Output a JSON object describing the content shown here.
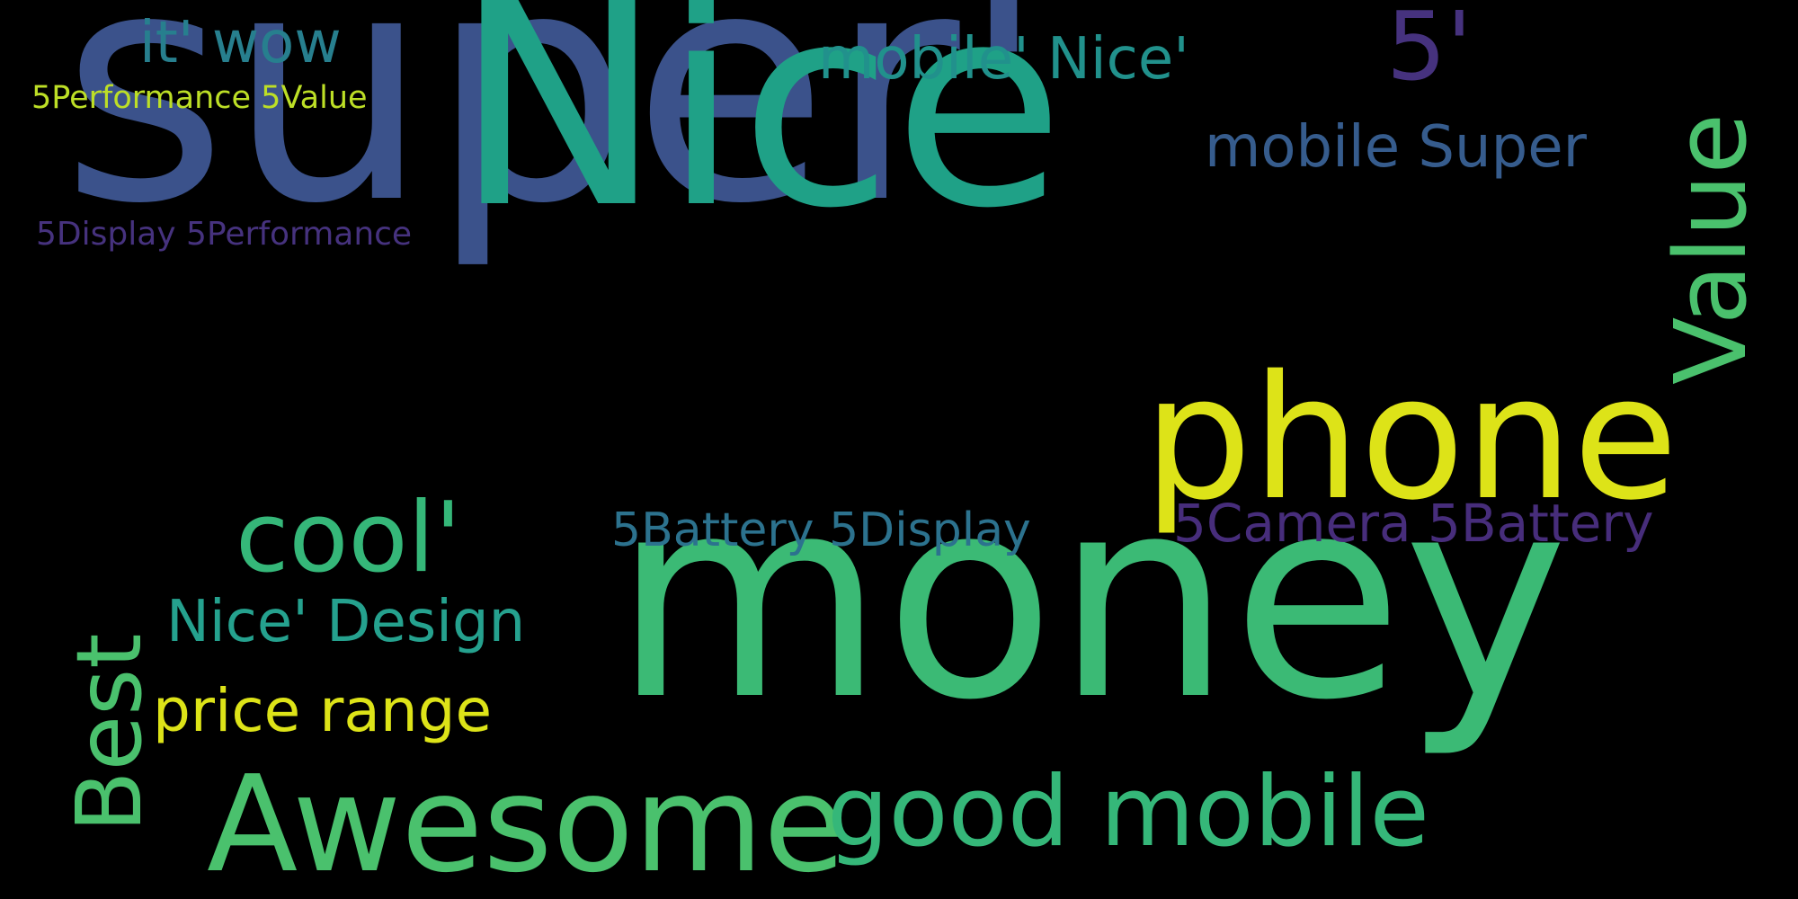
{
  "background": "#000000",
  "palette": {
    "deep_purple": "#46327e",
    "blue": "#3b528b",
    "steel_blue": "#365c8d",
    "teal": "#277f8e",
    "teal_green": "#21918c",
    "green": "#1fa187",
    "mint": "#4ac16d",
    "light_green": "#6ece58",
    "yellow": "#dde318",
    "lime": "#bddf26"
  },
  "words": [
    {
      "id": "super",
      "text": "super'",
      "color": "#3b528b",
      "orientation": "horizontal"
    },
    {
      "id": "nice-big",
      "text": "Nice",
      "color": "#1fa187",
      "orientation": "horizontal"
    },
    {
      "id": "money",
      "text": "money",
      "color": "#3bba75",
      "orientation": "horizontal"
    },
    {
      "id": "phone",
      "text": "phone",
      "color": "#dde318",
      "orientation": "horizontal"
    },
    {
      "id": "awesome",
      "text": "Awesome",
      "color": "#4ac16d",
      "orientation": "horizontal"
    },
    {
      "id": "good-mobile",
      "text": "good mobile",
      "color": "#35b779",
      "orientation": "horizontal"
    },
    {
      "id": "value",
      "text": "Value",
      "color": "#4ac16d",
      "orientation": "vertical"
    },
    {
      "id": "best",
      "text": "Best",
      "color": "#4ac16d",
      "orientation": "vertical"
    },
    {
      "id": "cool",
      "text": "cool'",
      "color": "#35b779",
      "orientation": "horizontal"
    },
    {
      "id": "five-apostrophe",
      "text": "5'",
      "color": "#46327e",
      "orientation": "horizontal"
    },
    {
      "id": "mobile-nice",
      "text": "mobile' Nice'",
      "color": "#21918c",
      "orientation": "horizontal"
    },
    {
      "id": "mobile-super",
      "text": "mobile Super",
      "color": "#365c8d",
      "orientation": "horizontal"
    },
    {
      "id": "it-wow",
      "text": "it' wow",
      "color": "#277f8e",
      "orientation": "horizontal"
    },
    {
      "id": "5performance-5value",
      "text": "5Performance 5Value",
      "color": "#bddf26",
      "orientation": "horizontal"
    },
    {
      "id": "5display-5performance",
      "text": "5Display 5Performance",
      "color": "#46327e",
      "orientation": "horizontal"
    },
    {
      "id": "5battery-5display",
      "text": "5Battery 5Display",
      "color": "#2c728e",
      "orientation": "horizontal"
    },
    {
      "id": "5camera-5battery",
      "text": "5Camera 5Battery",
      "color": "#472d7b",
      "orientation": "horizontal"
    },
    {
      "id": "nice-design",
      "text": "Nice' Design",
      "color": "#25a18e",
      "orientation": "horizontal"
    },
    {
      "id": "price-range",
      "text": "price range",
      "color": "#dde318",
      "orientation": "horizontal"
    }
  ]
}
